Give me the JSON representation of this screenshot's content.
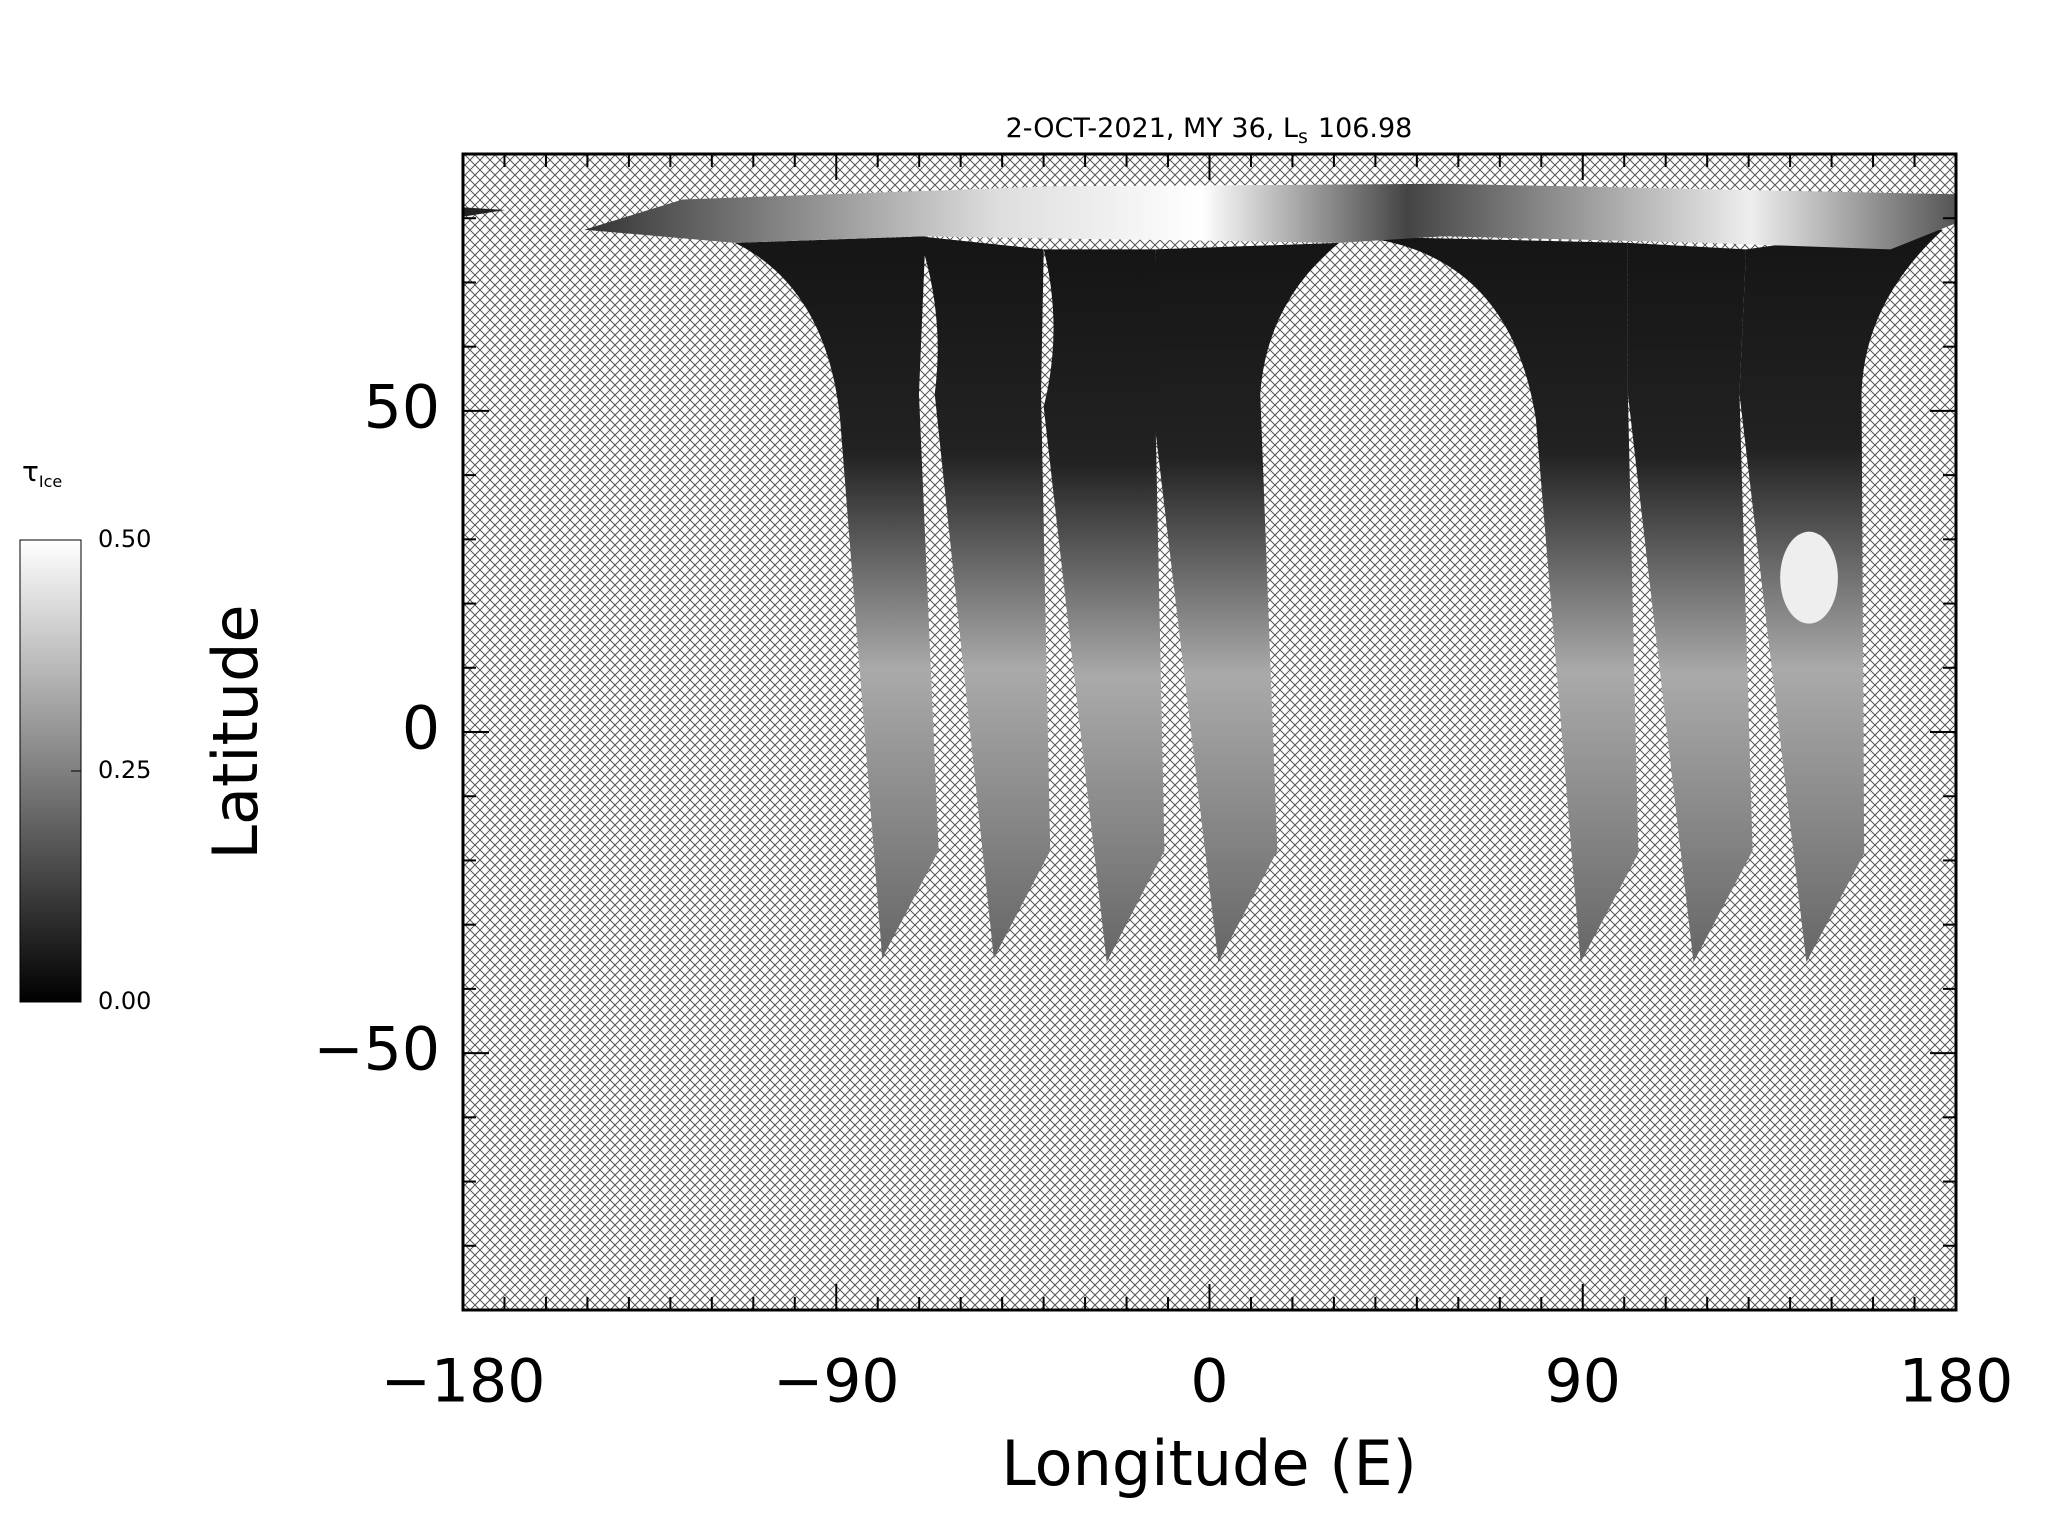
{
  "chart_data": {
    "type": "map",
    "title": {
      "text": "2-OCT-2021, MY 36,  L",
      "subscript": "s",
      "value": "106.98"
    },
    "x_label": "Longitude (E)",
    "y_label": "Latitude",
    "xlim": [
      -180,
      180
    ],
    "ylim": [
      -90,
      90
    ],
    "xticks": [
      {
        "value": -180,
        "label": "−180"
      },
      {
        "value": -90,
        "label": "−90"
      },
      0,
      90,
      180
    ],
    "yticks": [
      {
        "value": -50,
        "label": "−50"
      },
      0,
      50
    ],
    "xticks_minor": [
      -170,
      -160,
      -150,
      -140,
      -130,
      -120,
      -110,
      -100,
      -80,
      -70,
      -60,
      -50,
      -40,
      -30,
      -20,
      -10,
      10,
      20,
      30,
      40,
      50,
      60,
      70,
      80,
      100,
      110,
      120,
      130,
      140,
      150,
      160,
      170
    ],
    "yticks_minor": [
      -80,
      -70,
      -60,
      -40,
      -30,
      -20,
      -10,
      10,
      20,
      30,
      40,
      60,
      70,
      80
    ],
    "colorbar": {
      "label": "τ",
      "label_sub": "Ice",
      "lim": [
        0,
        0.5
      ],
      "colors": [
        "#000000",
        "#ffffff"
      ],
      "ticks": [
        {
          "value": 0,
          "label": "0.00"
        },
        0.25,
        {
          "value": 0.5,
          "label": "0.50"
        }
      ]
    }
  }
}
